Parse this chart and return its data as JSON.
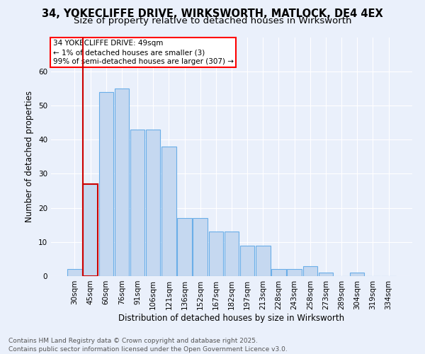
{
  "title_line1": "34, YOKECLIFFE DRIVE, WIRKSWORTH, MATLOCK, DE4 4EX",
  "title_line2": "Size of property relative to detached houses in Wirksworth",
  "xlabel": "Distribution of detached houses by size in Wirksworth",
  "ylabel": "Number of detached properties",
  "categories": [
    "30sqm",
    "45sqm",
    "60sqm",
    "76sqm",
    "91sqm",
    "106sqm",
    "121sqm",
    "136sqm",
    "152sqm",
    "167sqm",
    "182sqm",
    "197sqm",
    "213sqm",
    "228sqm",
    "243sqm",
    "258sqm",
    "273sqm",
    "289sqm",
    "304sqm",
    "319sqm",
    "334sqm"
  ],
  "values": [
    2,
    27,
    54,
    55,
    43,
    43,
    38,
    17,
    17,
    13,
    13,
    9,
    9,
    2,
    2,
    3,
    1,
    0,
    1,
    0,
    0
  ],
  "bar_color": "#c5d8f0",
  "bar_edge_color": "#6aaee8",
  "highlight_bar_index": 1,
  "highlight_bar_edge_color": "#cc0000",
  "annotation_box_text": "34 YOKECLIFFE DRIVE: 49sqm\n← 1% of detached houses are smaller (3)\n99% of semi-detached houses are larger (307) →",
  "ylim": [
    0,
    70
  ],
  "yticks": [
    0,
    10,
    20,
    30,
    40,
    50,
    60
  ],
  "background_color": "#eaf0fb",
  "grid_color": "#ffffff",
  "footer_line1": "Contains HM Land Registry data © Crown copyright and database right 2025.",
  "footer_line2": "Contains public sector information licensed under the Open Government Licence v3.0.",
  "title_fontsize": 10.5,
  "subtitle_fontsize": 9.5,
  "axis_label_fontsize": 8.5,
  "tick_fontsize": 7.5,
  "annotation_fontsize": 7.5,
  "footer_fontsize": 6.5
}
